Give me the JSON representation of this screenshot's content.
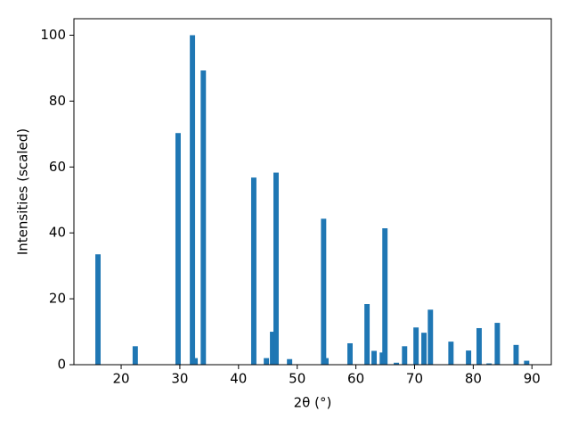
{
  "chart_data": {
    "type": "bar",
    "xlabel": "2θ (°)",
    "ylabel": "Intensities (scaled)",
    "x": [
      16.05,
      22.4,
      29.7,
      32.15,
      32.6,
      34.0,
      42.6,
      44.75,
      45.8,
      46.4,
      48.7,
      54.5,
      54.9,
      59.0,
      61.9,
      63.1,
      64.5,
      64.95,
      66.9,
      68.3,
      70.25,
      71.6,
      72.7,
      76.2,
      79.2,
      81.0,
      82.7,
      84.1,
      87.3,
      89.1
    ],
    "values": [
      33.5,
      5.6,
      70.3,
      100,
      2,
      89.3,
      56.8,
      2,
      10,
      58.3,
      1.7,
      44.3,
      2,
      6.5,
      18.4,
      4.2,
      3.7,
      41.4,
      0.6,
      5.6,
      11.3,
      9.7,
      16.7,
      7,
      4.3,
      11.1,
      0.4,
      12.7,
      6,
      1.2
    ],
    "color": "#1f77b4",
    "xlim": [
      11.95,
      93.3
    ],
    "ylim": [
      0,
      105
    ],
    "xticks": [
      20,
      30,
      40,
      50,
      60,
      70,
      80,
      90
    ],
    "yticks": [
      0,
      20,
      40,
      60,
      80,
      100
    ]
  }
}
